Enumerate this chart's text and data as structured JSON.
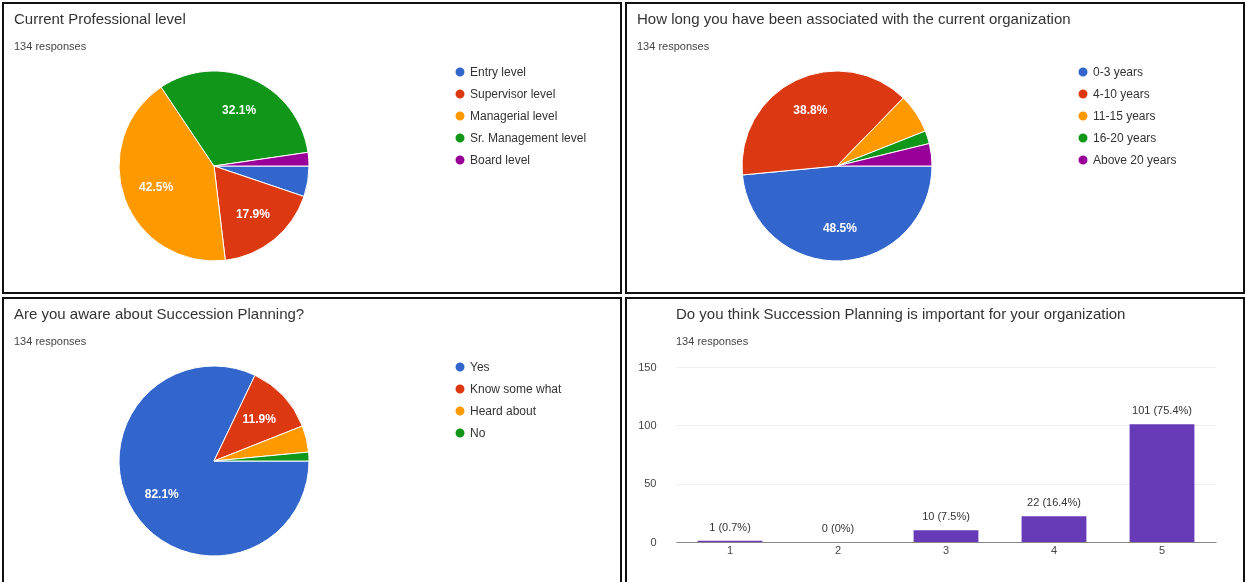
{
  "chart_data": [
    {
      "type": "pie",
      "title": "Current Professional level",
      "subtitle": "134 responses",
      "categories": [
        "Entry level",
        "Supervisor level",
        "Managerial level",
        "Sr. Management level",
        "Board level"
      ],
      "values": [
        5.2,
        17.9,
        42.5,
        32.1,
        2.3
      ],
      "colors": [
        "#3366cc",
        "#dc3912",
        "#ff9900",
        "#109618",
        "#990099"
      ],
      "value_labels": [
        null,
        "17.9%",
        "42.5%",
        "32.1%",
        null
      ],
      "legend": "right"
    },
    {
      "type": "pie",
      "title": "How long you have been associated with the current organization",
      "subtitle": "134 responses",
      "categories": [
        "0-3 years",
        "4-10 years",
        "11-15 years",
        "16-20 years",
        "Above 20 years"
      ],
      "values": [
        48.5,
        38.8,
        6.7,
        2.2,
        3.8
      ],
      "colors": [
        "#3366cc",
        "#dc3912",
        "#ff9900",
        "#109618",
        "#990099"
      ],
      "value_labels": [
        "48.5%",
        "38.8%",
        null,
        null,
        null
      ],
      "legend": "right"
    },
    {
      "type": "pie",
      "title": "Are you aware about Succession Planning?",
      "subtitle": "134 responses",
      "categories": [
        "Yes",
        "Know some what",
        "Heard about",
        "No"
      ],
      "values": [
        82.1,
        11.9,
        4.5,
        1.5
      ],
      "colors": [
        "#3366cc",
        "#dc3912",
        "#ff9900",
        "#109618"
      ],
      "value_labels": [
        "82.1%",
        "11.9%",
        null,
        null
      ],
      "legend": "right"
    },
    {
      "type": "bar",
      "title": "Do you think Succession Planning is important for your organization",
      "subtitle": "134 responses",
      "categories": [
        "1",
        "2",
        "3",
        "4",
        "5"
      ],
      "values": [
        1,
        0,
        10,
        22,
        101
      ],
      "color": "#673ab7",
      "value_labels": [
        "1 (0.7%)",
        "0 (0%)",
        "10 (7.5%)",
        "22 (16.4%)",
        "101 (75.4%)"
      ],
      "ylim": [
        0,
        150
      ],
      "yticks": [
        0,
        50,
        100,
        150
      ],
      "grid": "y"
    }
  ]
}
